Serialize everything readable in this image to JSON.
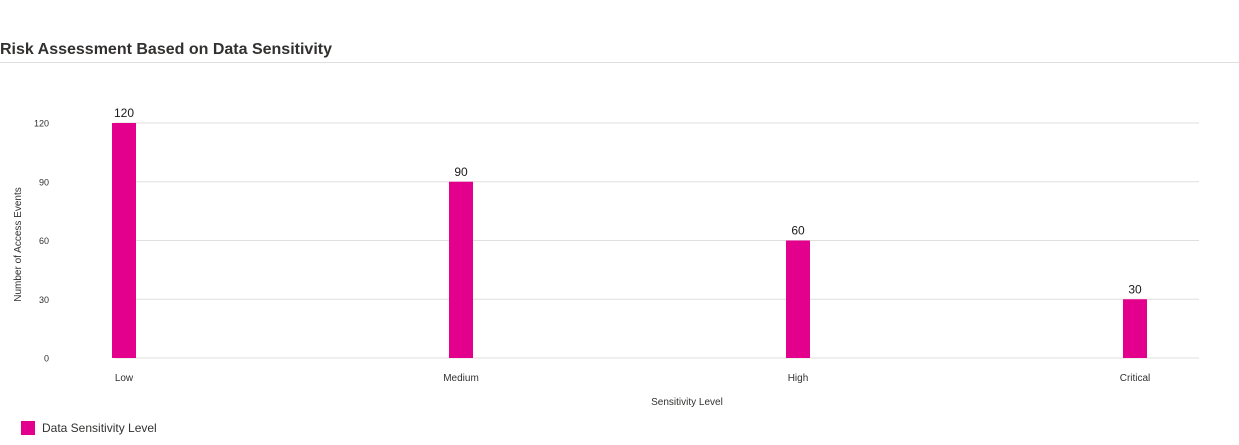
{
  "card": {
    "title": "Risk Assessment Based on Data Sensitivity"
  },
  "legend": {
    "label": "Data Sensitivity Level"
  },
  "colors": {
    "bar": "#e3008c",
    "grid": "#e1dfdd",
    "axis_text": "#323130",
    "label_text": "#1b1a19"
  },
  "chart_data": {
    "type": "bar",
    "categories": [
      "Low",
      "Medium",
      "High",
      "Critical"
    ],
    "series": [
      {
        "name": "Data Sensitivity Level",
        "values": [
          120,
          90,
          60,
          30
        ]
      }
    ],
    "xlabel": "Sensitivity Level",
    "ylabel": "Number of Access Events",
    "ylim": [
      0,
      120
    ],
    "yticks": [
      0,
      30,
      60,
      90,
      120
    ],
    "grid": true,
    "data_labels": true,
    "legend_position": "bottom-left"
  }
}
